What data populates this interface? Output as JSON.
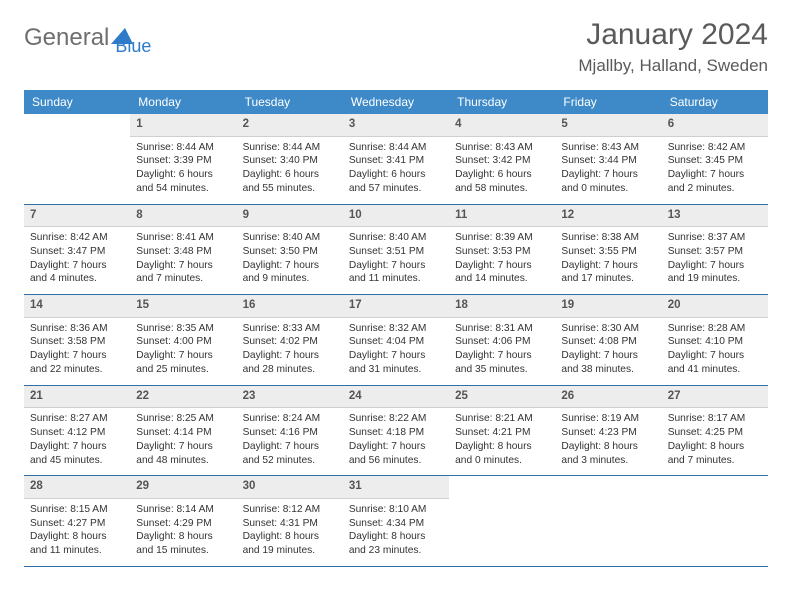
{
  "logo": {
    "word1": "General",
    "word2": "Blue"
  },
  "title": "January 2024",
  "location": "Mjallby, Halland, Sweden",
  "colors": {
    "header_bg": "#3e8ac8",
    "week_border": "#2f6fa7",
    "daynum_bg": "#ededed",
    "logo_gray": "#6f6f6f",
    "logo_blue": "#2f7bc9"
  },
  "daysOfWeek": [
    "Sunday",
    "Monday",
    "Tuesday",
    "Wednesday",
    "Thursday",
    "Friday",
    "Saturday"
  ],
  "weeks": [
    [
      {
        "n": "",
        "sr": "",
        "ss": "",
        "dl": ""
      },
      {
        "n": "1",
        "sr": "Sunrise: 8:44 AM",
        "ss": "Sunset: 3:39 PM",
        "dl": "Daylight: 6 hours and 54 minutes."
      },
      {
        "n": "2",
        "sr": "Sunrise: 8:44 AM",
        "ss": "Sunset: 3:40 PM",
        "dl": "Daylight: 6 hours and 55 minutes."
      },
      {
        "n": "3",
        "sr": "Sunrise: 8:44 AM",
        "ss": "Sunset: 3:41 PM",
        "dl": "Daylight: 6 hours and 57 minutes."
      },
      {
        "n": "4",
        "sr": "Sunrise: 8:43 AM",
        "ss": "Sunset: 3:42 PM",
        "dl": "Daylight: 6 hours and 58 minutes."
      },
      {
        "n": "5",
        "sr": "Sunrise: 8:43 AM",
        "ss": "Sunset: 3:44 PM",
        "dl": "Daylight: 7 hours and 0 minutes."
      },
      {
        "n": "6",
        "sr": "Sunrise: 8:42 AM",
        "ss": "Sunset: 3:45 PM",
        "dl": "Daylight: 7 hours and 2 minutes."
      }
    ],
    [
      {
        "n": "7",
        "sr": "Sunrise: 8:42 AM",
        "ss": "Sunset: 3:47 PM",
        "dl": "Daylight: 7 hours and 4 minutes."
      },
      {
        "n": "8",
        "sr": "Sunrise: 8:41 AM",
        "ss": "Sunset: 3:48 PM",
        "dl": "Daylight: 7 hours and 7 minutes."
      },
      {
        "n": "9",
        "sr": "Sunrise: 8:40 AM",
        "ss": "Sunset: 3:50 PM",
        "dl": "Daylight: 7 hours and 9 minutes."
      },
      {
        "n": "10",
        "sr": "Sunrise: 8:40 AM",
        "ss": "Sunset: 3:51 PM",
        "dl": "Daylight: 7 hours and 11 minutes."
      },
      {
        "n": "11",
        "sr": "Sunrise: 8:39 AM",
        "ss": "Sunset: 3:53 PM",
        "dl": "Daylight: 7 hours and 14 minutes."
      },
      {
        "n": "12",
        "sr": "Sunrise: 8:38 AM",
        "ss": "Sunset: 3:55 PM",
        "dl": "Daylight: 7 hours and 17 minutes."
      },
      {
        "n": "13",
        "sr": "Sunrise: 8:37 AM",
        "ss": "Sunset: 3:57 PM",
        "dl": "Daylight: 7 hours and 19 minutes."
      }
    ],
    [
      {
        "n": "14",
        "sr": "Sunrise: 8:36 AM",
        "ss": "Sunset: 3:58 PM",
        "dl": "Daylight: 7 hours and 22 minutes."
      },
      {
        "n": "15",
        "sr": "Sunrise: 8:35 AM",
        "ss": "Sunset: 4:00 PM",
        "dl": "Daylight: 7 hours and 25 minutes."
      },
      {
        "n": "16",
        "sr": "Sunrise: 8:33 AM",
        "ss": "Sunset: 4:02 PM",
        "dl": "Daylight: 7 hours and 28 minutes."
      },
      {
        "n": "17",
        "sr": "Sunrise: 8:32 AM",
        "ss": "Sunset: 4:04 PM",
        "dl": "Daylight: 7 hours and 31 minutes."
      },
      {
        "n": "18",
        "sr": "Sunrise: 8:31 AM",
        "ss": "Sunset: 4:06 PM",
        "dl": "Daylight: 7 hours and 35 minutes."
      },
      {
        "n": "19",
        "sr": "Sunrise: 8:30 AM",
        "ss": "Sunset: 4:08 PM",
        "dl": "Daylight: 7 hours and 38 minutes."
      },
      {
        "n": "20",
        "sr": "Sunrise: 8:28 AM",
        "ss": "Sunset: 4:10 PM",
        "dl": "Daylight: 7 hours and 41 minutes."
      }
    ],
    [
      {
        "n": "21",
        "sr": "Sunrise: 8:27 AM",
        "ss": "Sunset: 4:12 PM",
        "dl": "Daylight: 7 hours and 45 minutes."
      },
      {
        "n": "22",
        "sr": "Sunrise: 8:25 AM",
        "ss": "Sunset: 4:14 PM",
        "dl": "Daylight: 7 hours and 48 minutes."
      },
      {
        "n": "23",
        "sr": "Sunrise: 8:24 AM",
        "ss": "Sunset: 4:16 PM",
        "dl": "Daylight: 7 hours and 52 minutes."
      },
      {
        "n": "24",
        "sr": "Sunrise: 8:22 AM",
        "ss": "Sunset: 4:18 PM",
        "dl": "Daylight: 7 hours and 56 minutes."
      },
      {
        "n": "25",
        "sr": "Sunrise: 8:21 AM",
        "ss": "Sunset: 4:21 PM",
        "dl": "Daylight: 8 hours and 0 minutes."
      },
      {
        "n": "26",
        "sr": "Sunrise: 8:19 AM",
        "ss": "Sunset: 4:23 PM",
        "dl": "Daylight: 8 hours and 3 minutes."
      },
      {
        "n": "27",
        "sr": "Sunrise: 8:17 AM",
        "ss": "Sunset: 4:25 PM",
        "dl": "Daylight: 8 hours and 7 minutes."
      }
    ],
    [
      {
        "n": "28",
        "sr": "Sunrise: 8:15 AM",
        "ss": "Sunset: 4:27 PM",
        "dl": "Daylight: 8 hours and 11 minutes."
      },
      {
        "n": "29",
        "sr": "Sunrise: 8:14 AM",
        "ss": "Sunset: 4:29 PM",
        "dl": "Daylight: 8 hours and 15 minutes."
      },
      {
        "n": "30",
        "sr": "Sunrise: 8:12 AM",
        "ss": "Sunset: 4:31 PM",
        "dl": "Daylight: 8 hours and 19 minutes."
      },
      {
        "n": "31",
        "sr": "Sunrise: 8:10 AM",
        "ss": "Sunset: 4:34 PM",
        "dl": "Daylight: 8 hours and 23 minutes."
      },
      {
        "n": "",
        "sr": "",
        "ss": "",
        "dl": ""
      },
      {
        "n": "",
        "sr": "",
        "ss": "",
        "dl": ""
      },
      {
        "n": "",
        "sr": "",
        "ss": "",
        "dl": ""
      }
    ]
  ]
}
